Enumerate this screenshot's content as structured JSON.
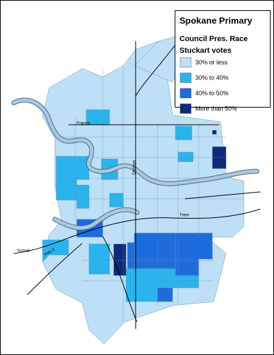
{
  "legend": {
    "title": "Spokane Primary",
    "subtitle": "Council Pres. Race",
    "heading": "Stuckart votes",
    "items": [
      {
        "label": "30% or less",
        "color": "#bde0f7"
      },
      {
        "label": "30% to 40%",
        "color": "#29b4ee"
      },
      {
        "label": "40% to 50%",
        "color": "#1c6cdc"
      },
      {
        "label": "More than 50%",
        "color": "#0c2b78"
      }
    ]
  },
  "map_labels": [
    "Francis",
    "Division",
    "Trent",
    "Sunset",
    "Hwy 2"
  ]
}
